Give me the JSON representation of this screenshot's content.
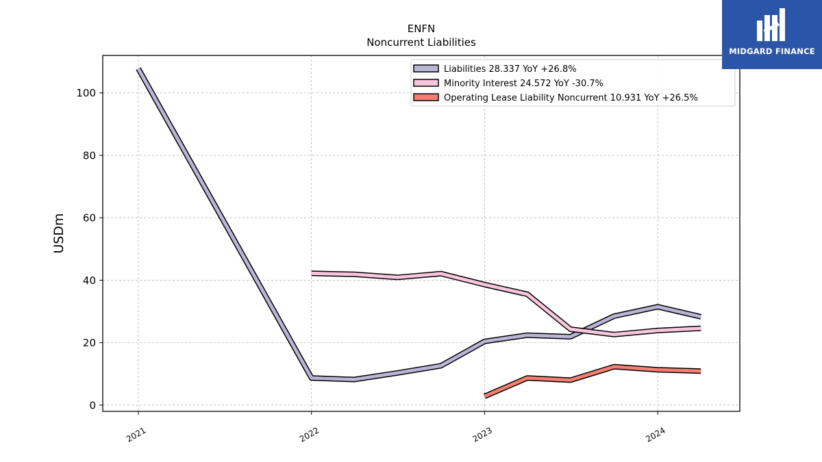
{
  "chart_data": {
    "type": "line",
    "title": "ENFN",
    "subtitle": "Noncurrent  Liabilities",
    "ylabel": "USDm",
    "xlabel": "",
    "ylim": [
      -2,
      112
    ],
    "xlim": [
      "2020-10-18",
      "2024-06-22"
    ],
    "yticks": [
      0,
      20,
      40,
      60,
      80,
      100
    ],
    "xticks": [
      {
        "date": "2021-01-01",
        "label": "2021"
      },
      {
        "date": "2022-01-01",
        "label": "2022"
      },
      {
        "date": "2023-01-01",
        "label": "2023"
      },
      {
        "date": "2024-01-01",
        "label": "2024"
      }
    ],
    "grid": true,
    "legend_position": "top-right",
    "series": [
      {
        "name": "Liabilities  28.337 YoY +26.8%",
        "color": "#b8b5d6",
        "points": [
          [
            "2021-01-01",
            107.8
          ],
          [
            "2022-01-01",
            8.7
          ],
          [
            "2022-04-01",
            8.2
          ],
          [
            "2022-07-01",
            10.3
          ],
          [
            "2022-10-01",
            12.6
          ],
          [
            "2023-01-01",
            20.4
          ],
          [
            "2023-04-01",
            22.4
          ],
          [
            "2023-07-01",
            21.9
          ],
          [
            "2023-10-01",
            28.5
          ],
          [
            "2024-01-01",
            31.5
          ],
          [
            "2024-04-01",
            28.3
          ]
        ]
      },
      {
        "name": "Minority Interest  24.572 YoY -30.7%",
        "color": "#f7c6dc",
        "points": [
          [
            "2022-01-01",
            42.2
          ],
          [
            "2022-04-01",
            41.9
          ],
          [
            "2022-07-01",
            40.9
          ],
          [
            "2022-10-01",
            42.1
          ],
          [
            "2023-01-01",
            38.6
          ],
          [
            "2023-04-01",
            35.5
          ],
          [
            "2023-07-01",
            24.3
          ],
          [
            "2023-10-01",
            22.6
          ],
          [
            "2024-01-01",
            23.9
          ],
          [
            "2024-04-01",
            24.6
          ]
        ]
      },
      {
        "name": "Operating Lease Liability Noncurrent  10.931 YoY +26.5%",
        "color": "#f47f72",
        "points": [
          [
            "2023-01-01",
            2.8
          ],
          [
            "2023-04-01",
            8.7
          ],
          [
            "2023-07-01",
            8.0
          ],
          [
            "2023-10-01",
            12.3
          ],
          [
            "2024-01-01",
            11.3
          ],
          [
            "2024-04-01",
            10.9
          ]
        ]
      }
    ]
  },
  "logo": {
    "text": "MIDGARD FINANCE",
    "background": "#2b56a8"
  }
}
